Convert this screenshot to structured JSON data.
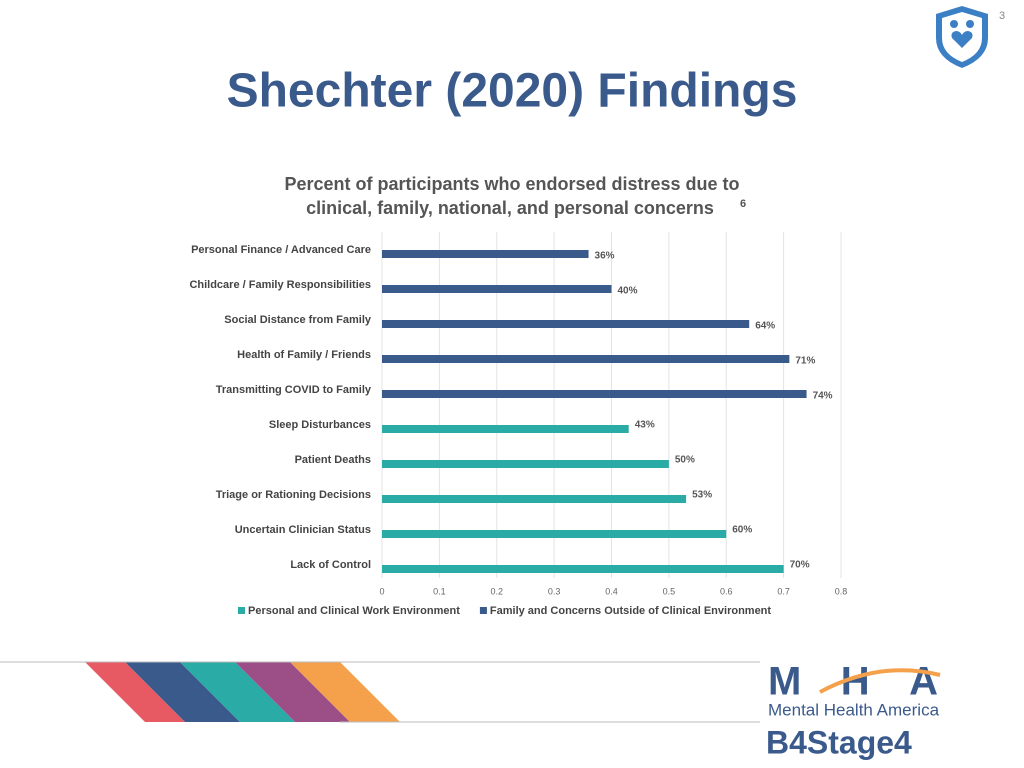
{
  "slide": {
    "page_number": "3",
    "title": "Shechter (2020) Findings",
    "logo": {
      "brand": "MHA",
      "name": "Mental Health America",
      "tagline": "B4Stage4"
    }
  },
  "chart_data": {
    "type": "hbar",
    "title": "Percent of participants who endorsed distress due to",
    "title_line2": "clinical, family, national, and personal concerns",
    "title_superscript": "6",
    "categories": [
      "Personal Finance / Advanced Care",
      "Childcare / Family Responsibilities",
      "Social Distance from Family",
      "Health of Family / Friends",
      "Transmitting COVID to Family",
      "Sleep Disturbances",
      "Patient Deaths",
      "Triage or Rationing Decisions",
      "Uncertain Clinician Status",
      "Lack of Control"
    ],
    "series": [
      {
        "name": "Personal and Clinical Work Environment",
        "color": "#2aaba5",
        "values": [
          null,
          null,
          null,
          null,
          null,
          0.43,
          0.5,
          0.53,
          0.6,
          0.7
        ],
        "value_labels": [
          null,
          null,
          null,
          null,
          null,
          "43%",
          "50%",
          "53%",
          "60%",
          "70%"
        ]
      },
      {
        "name": "Family and Concerns Outside of Clinical Environment",
        "color": "#3b5a8c",
        "values": [
          0.36,
          0.4,
          0.64,
          0.71,
          0.74,
          null,
          null,
          null,
          null,
          null
        ],
        "value_labels": [
          "36%",
          "40%",
          "64%",
          "71%",
          "74%",
          null,
          null,
          null,
          null,
          null
        ]
      }
    ],
    "xlim": [
      0,
      0.8
    ],
    "xticks": [
      0,
      0.1,
      0.2,
      0.3,
      0.4,
      0.5,
      0.6,
      0.7,
      0.8
    ],
    "grid": true,
    "legend": "bottom"
  }
}
